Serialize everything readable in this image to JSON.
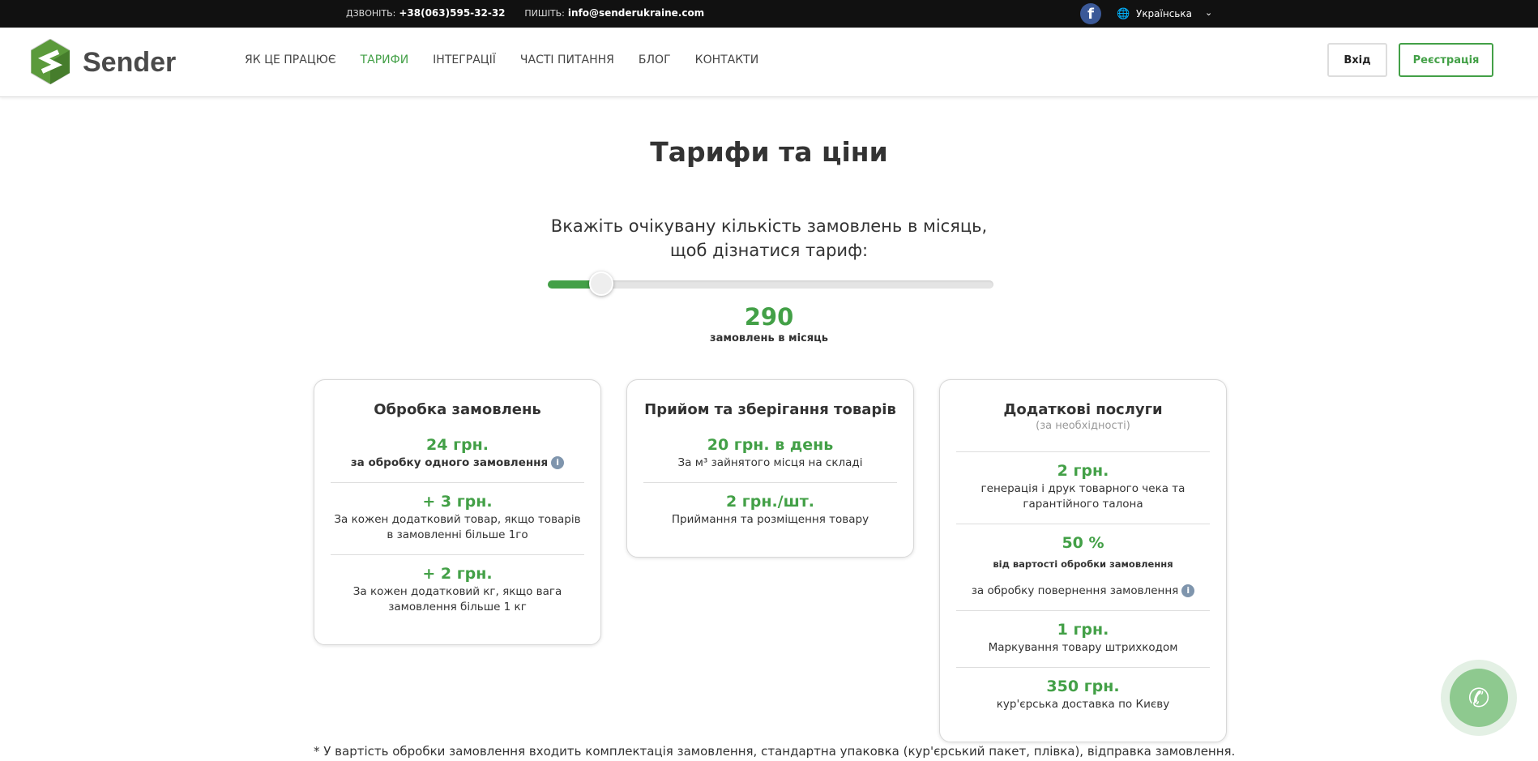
{
  "topbar": {
    "call_label": "ДЗВОНІТЬ:",
    "phone": "+38(063)595-32-32",
    "write_label": "ПИШІТЬ:",
    "email": "info@senderukraine.com",
    "language": "Українська"
  },
  "header": {
    "brand": "Sender",
    "nav": [
      "ЯК ЦЕ ПРАЦЮЄ",
      "ТАРИФИ",
      "ІНТЕГРАЦІЇ",
      "ЧАСТІ ПИТАННЯ",
      "БЛОГ",
      "КОНТАКТИ"
    ],
    "active_nav": "ТАРИФИ",
    "login": "Вхід",
    "register": "Реєстрація"
  },
  "colors": {
    "accent": "#43a047",
    "topbar": "#111111",
    "facebook": "#3b5998"
  },
  "main": {
    "title": "Тарифи та ціни",
    "subtitle_line1": "Вкажіть очікувану кількість замовлень в місяць,",
    "subtitle_line2": "щоб дізнатися тариф:",
    "slider_fraction": 0.12,
    "count": "290",
    "count_label": "замовлень в місяць"
  },
  "cards": [
    {
      "title": "Обробка замовлень",
      "items": [
        {
          "price": "24 грн.",
          "desc": "за обробку одного замовлення"
        },
        {
          "price": "+ 3 грн.",
          "desc": "За кожен додатковий товар, якщо товарів в замовленні більше 1го"
        },
        {
          "price": "+ 2 грн.",
          "desc": "За кожен додатковий кг, якщо вага замовлення більше 1 кг"
        }
      ]
    },
    {
      "title": "Прийом та зберігання товарів",
      "items": [
        {
          "price": "20 грн. в день",
          "desc": "За м³ зайнятого місця на складі"
        },
        {
          "price": "2 грн./шт.",
          "desc": "Приймання та розміщення товару"
        }
      ]
    },
    {
      "title": "Додаткові послуги",
      "note": "(за необхідності)",
      "items": [
        {
          "price": "2 грн.",
          "desc": "генерація і друк товарного чека та гарантійного талона"
        },
        {
          "price": "50 %",
          "desc_small": "від вартості обробки замовлення",
          "desc": "за обробку повернення замовлення"
        },
        {
          "price": "1 грн.",
          "desc": "Маркування товару штрихкодом"
        },
        {
          "price": "350 грн.",
          "desc": "кур'єрська доставка по Києву"
        }
      ]
    }
  ],
  "footnote": "* У вартість обробки замовлення входить комплектація замовлення, стандартна упаковка (кур'єрський пакет, плівка), відправка замовлення."
}
